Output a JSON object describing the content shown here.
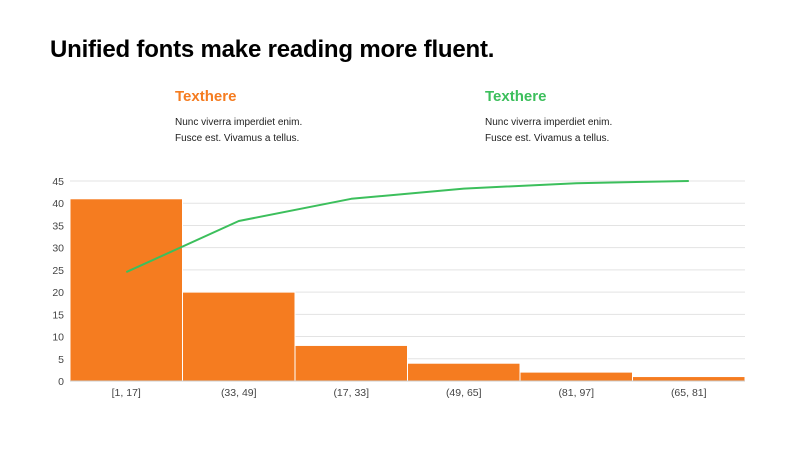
{
  "page": {
    "title": "Unified fonts make reading more fluent."
  },
  "callouts": [
    {
      "title": "Texthere",
      "line1": "Nunc viverra imperdiet enim.",
      "line2": "Fusce est. Vivamus a tellus.",
      "color": "#f57c20"
    },
    {
      "title": "Texthere",
      "line1": "Nunc viverra imperdiet enim.",
      "line2": "Fusce est. Vivamus a tellus.",
      "color": "#3cbf5c"
    }
  ],
  "chart_data": {
    "type": "bar",
    "categories": [
      "[1, 17]",
      "(33, 49]",
      "(17, 33]",
      "(49, 65]",
      "(81, 97]",
      "(65, 81]"
    ],
    "series": [
      {
        "kind": "bar",
        "values": [
          41,
          20,
          8,
          4,
          2,
          1
        ],
        "color": "#f57c20"
      },
      {
        "kind": "line",
        "values": [
          24.5,
          36,
          41,
          43.3,
          44.5,
          45
        ],
        "color": "#3cbf5c"
      }
    ],
    "ylim": [
      0,
      45
    ],
    "yticks": [
      0,
      5,
      10,
      15,
      20,
      25,
      30,
      35,
      40,
      45
    ],
    "grid": true,
    "xlabel": "",
    "ylabel": ""
  }
}
